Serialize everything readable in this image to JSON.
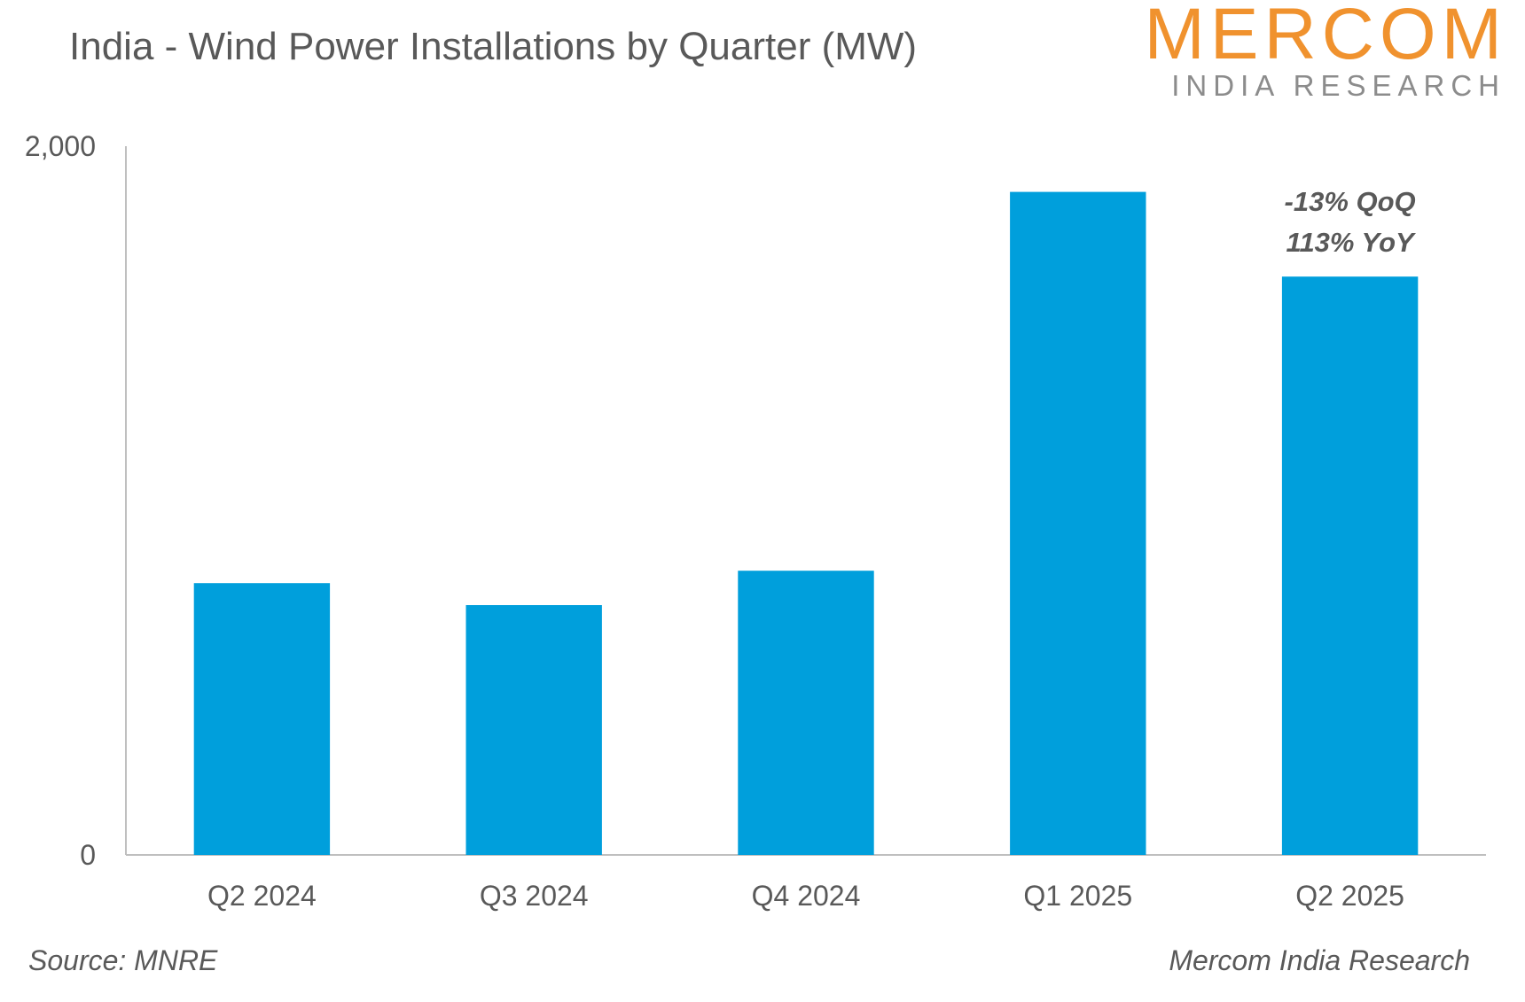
{
  "title": "India - Wind Power Installations by Quarter (MW)",
  "logo": {
    "main": "MERCOM",
    "sub": "INDIA RESEARCH"
  },
  "source": "Source: MNRE",
  "credit": "Mercom India Research",
  "colors": {
    "bar": "#009fdc",
    "text": "#595959",
    "logo_accent": "#f0922e",
    "axis": "#bfbfbf"
  },
  "chart_data": {
    "type": "bar",
    "categories": [
      "Q2 2024",
      "Q3 2024",
      "Q4 2024",
      "Q1 2025",
      "Q2 2025"
    ],
    "values": [
      767,
      705,
      802,
      1871,
      1632
    ],
    "ylim": [
      0,
      2000
    ],
    "yticks": [
      0,
      2000
    ],
    "ytick_labels": [
      "0",
      "2,000"
    ],
    "grid": false,
    "legend": "none",
    "annotations": [
      {
        "category": "Q2 2025",
        "lines": [
          "-13% QoQ",
          "113% YoY"
        ]
      }
    ]
  }
}
